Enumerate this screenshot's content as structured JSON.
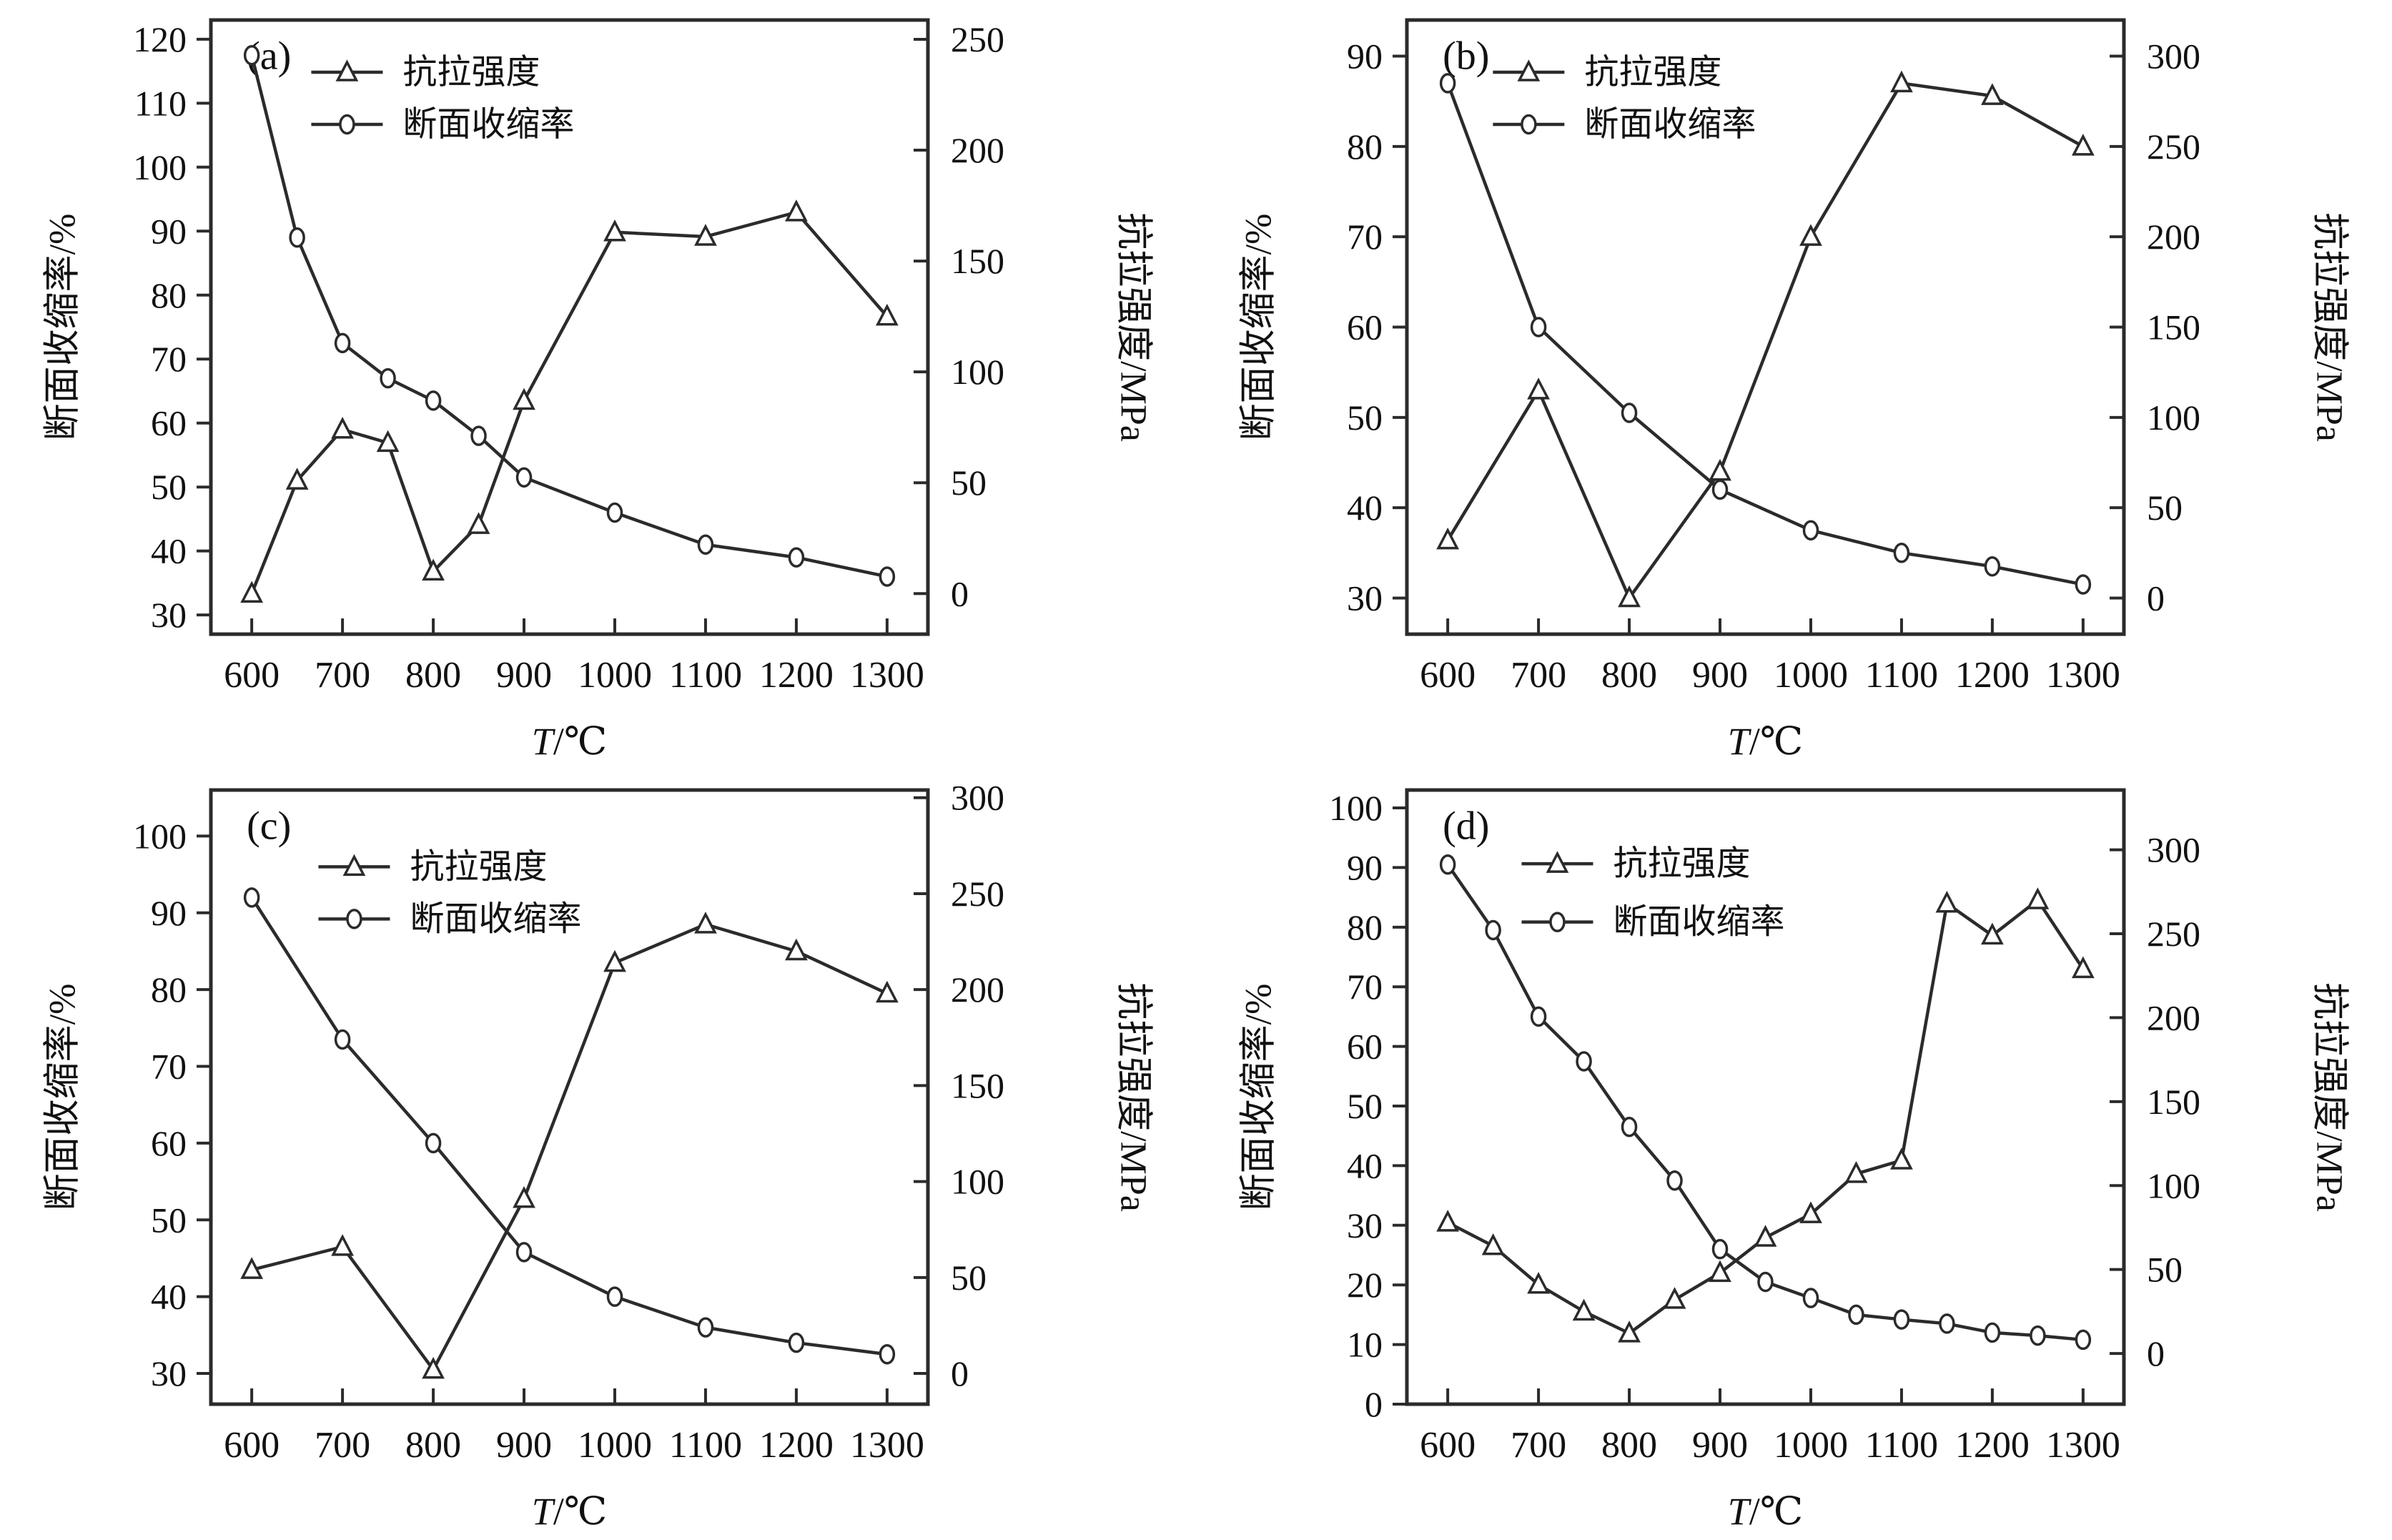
{
  "figure": {
    "background": "#ffffff",
    "line_color": "#2b2b2b",
    "text_color": "#111111",
    "marker_fill": "#ffffff"
  },
  "axis_labels": {
    "x": "T/℃",
    "left": "断面收缩率/%",
    "right": "抗拉强度/MPa"
  },
  "legend_labels": {
    "tensile": "抗拉强度",
    "reduction": "断面收缩率"
  },
  "chart_data": [
    {
      "id": "a",
      "panel_label": "(a)",
      "type": "line",
      "xlabel": "T/℃",
      "left_ylabel": "断面收缩率/%",
      "right_ylabel": "抗拉强度/MPa",
      "x_ticks": [
        600,
        700,
        800,
        900,
        1000,
        1100,
        1200,
        1300
      ],
      "xlim": [
        555,
        1345
      ],
      "left_ticks": [
        30,
        40,
        50,
        60,
        70,
        80,
        90,
        100,
        110,
        120
      ],
      "left_lim": [
        27,
        123
      ],
      "right_ticks": [
        0,
        50,
        100,
        150,
        200,
        250
      ],
      "right_lim": [
        -18.3,
        258.7
      ],
      "legend_pos": {
        "x": 0.14,
        "y1": 0.085,
        "y2": 0.17
      },
      "grid": false,
      "series": [
        {
          "name": "抗拉强度",
          "axis": "right",
          "marker": "triangle",
          "x": [
            600,
            650,
            700,
            750,
            800,
            850,
            900,
            1000,
            1100,
            1200,
            1300
          ],
          "y": [
            0,
            51,
            74,
            68,
            10,
            31,
            87,
            163,
            161,
            172,
            125
          ]
        },
        {
          "name": "断面收缩率",
          "axis": "left",
          "marker": "circle",
          "x": [
            600,
            650,
            700,
            750,
            800,
            850,
            900,
            1000,
            1100,
            1200,
            1300
          ],
          "y": [
            117.5,
            89,
            72.5,
            67,
            63.5,
            58,
            51.5,
            46,
            41,
            39,
            36
          ]
        }
      ]
    },
    {
      "id": "b",
      "panel_label": "(b)",
      "type": "line",
      "xlabel": "T/℃",
      "left_ylabel": "断面收缩率/%",
      "right_ylabel": "抗拉强度/MPa",
      "x_ticks": [
        600,
        700,
        800,
        900,
        1000,
        1100,
        1200,
        1300
      ],
      "xlim": [
        555,
        1345
      ],
      "left_ticks": [
        30,
        40,
        50,
        60,
        70,
        80,
        90
      ],
      "left_lim": [
        26,
        94
      ],
      "right_ticks": [
        0,
        50,
        100,
        150,
        200,
        250,
        300
      ],
      "right_lim": [
        -20,
        320
      ],
      "legend_pos": {
        "x": 0.12,
        "y1": 0.085,
        "y2": 0.17
      },
      "grid": false,
      "series": [
        {
          "name": "抗拉强度",
          "axis": "right",
          "marker": "triangle",
          "x": [
            600,
            700,
            800,
            900,
            1000,
            1100,
            1200,
            1300
          ],
          "y": [
            32,
            115,
            0,
            70,
            200,
            285,
            278,
            250
          ]
        },
        {
          "name": "断面收缩率",
          "axis": "left",
          "marker": "circle",
          "x": [
            600,
            700,
            800,
            900,
            1000,
            1100,
            1200,
            1300
          ],
          "y": [
            87,
            60,
            50.5,
            42,
            37.5,
            35,
            33.5,
            31.5
          ]
        }
      ]
    },
    {
      "id": "c",
      "panel_label": "(c)",
      "type": "line",
      "xlabel": "T/℃",
      "left_ylabel": "断面收缩率/%",
      "right_ylabel": "抗拉强度/MPa",
      "x_ticks": [
        600,
        700,
        800,
        900,
        1000,
        1100,
        1200,
        1300
      ],
      "xlim": [
        555,
        1345
      ],
      "left_ticks": [
        30,
        40,
        50,
        60,
        70,
        80,
        90,
        100
      ],
      "left_lim": [
        26,
        106
      ],
      "right_ticks": [
        0,
        50,
        100,
        150,
        200,
        250,
        300
      ],
      "right_lim": [
        -16,
        304
      ],
      "legend_pos": {
        "x": 0.15,
        "y1": 0.125,
        "y2": 0.21
      },
      "grid": false,
      "series": [
        {
          "name": "抗拉强度",
          "axis": "right",
          "marker": "triangle",
          "x": [
            600,
            700,
            800,
            900,
            1000,
            1100,
            1200,
            1300
          ],
          "y": [
            54,
            66,
            2,
            91,
            214,
            234,
            220,
            198
          ]
        },
        {
          "name": "断面收缩率",
          "axis": "left",
          "marker": "circle",
          "x": [
            600,
            700,
            800,
            900,
            1000,
            1100,
            1200,
            1300
          ],
          "y": [
            92,
            73.5,
            60,
            45.8,
            40,
            36,
            34,
            32.5
          ]
        }
      ]
    },
    {
      "id": "d",
      "panel_label": "(d)",
      "type": "line",
      "xlabel": "T/℃",
      "left_ylabel": "断面收缩率/%",
      "right_ylabel": "抗拉强度/MPa",
      "x_ticks": [
        600,
        700,
        800,
        900,
        1000,
        1100,
        1200,
        1300
      ],
      "xlim": [
        555,
        1345
      ],
      "left_ticks": [
        0,
        10,
        20,
        30,
        40,
        50,
        60,
        70,
        80,
        90,
        100
      ],
      "left_lim": [
        0,
        103
      ],
      "right_ticks": [
        0,
        50,
        100,
        150,
        200,
        250,
        300
      ],
      "right_lim": [
        -30.2,
        335.6
      ],
      "legend_pos": {
        "x": 0.16,
        "y1": 0.12,
        "y2": 0.215
      },
      "grid": false,
      "series": [
        {
          "name": "抗拉强度",
          "axis": "right",
          "marker": "triangle",
          "x": [
            600,
            650,
            700,
            750,
            800,
            850,
            900,
            950,
            1000,
            1050,
            1100,
            1150,
            1200,
            1250,
            1300
          ],
          "y": [
            78,
            64,
            41,
            25,
            12,
            32,
            48,
            69,
            83,
            107,
            115,
            268,
            249,
            270,
            229
          ]
        },
        {
          "name": "断面收缩率",
          "axis": "left",
          "marker": "circle",
          "x": [
            600,
            650,
            700,
            750,
            800,
            850,
            900,
            950,
            1000,
            1050,
            1100,
            1150,
            1200,
            1250,
            1300
          ],
          "y": [
            90.5,
            79.5,
            65,
            57.5,
            46.5,
            37.5,
            26,
            20.5,
            17.8,
            15,
            14.2,
            13.5,
            12,
            11.5,
            10.8
          ]
        }
      ]
    }
  ]
}
